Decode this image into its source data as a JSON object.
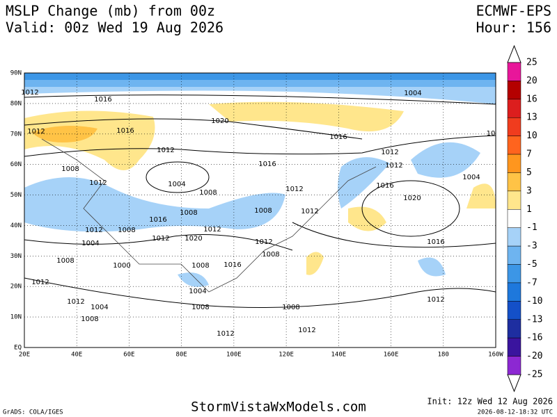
{
  "header": {
    "title": "MSLP Change (mb) from 00z",
    "valid": "Valid: 00z Wed 19 Aug 2026",
    "model": "ECMWF-EPS",
    "hour": "Hour: 156"
  },
  "map": {
    "lat_labels": [
      "90N",
      "80N",
      "70N",
      "60N",
      "50N",
      "40N",
      "30N",
      "20N",
      "10N",
      "EQ"
    ],
    "lon_labels": [
      "20E",
      "40E",
      "60E",
      "80E",
      "100E",
      "120E",
      "140E",
      "160E",
      "180",
      "160W"
    ],
    "contour_labels": [
      "1012",
      "1016",
      "1004",
      "1020",
      "1012",
      "1016",
      "1016",
      "10",
      "1012",
      "1012",
      "1008",
      "1016",
      "1012",
      "1004",
      "1004",
      "1012",
      "1016",
      "1012",
      "1008",
      "1020",
      "1008",
      "1012",
      "1008",
      "1016",
      "1012",
      "1008",
      "1012",
      "1020",
      "1012",
      "1012",
      "1004",
      "1016",
      "1008",
      "1008",
      "1000",
      "1008",
      "1016",
      "1012",
      "1004",
      "1012",
      "1004",
      "1012",
      "1008",
      "1008",
      "1008",
      "1012",
      "1012"
    ]
  },
  "colorbar": {
    "labels": [
      "25",
      "20",
      "16",
      "13",
      "10",
      "7",
      "5",
      "3",
      "1",
      "-1",
      "-3",
      "-5",
      "-7",
      "-10",
      "-13",
      "-16",
      "-20",
      "-25"
    ],
    "colors": [
      "#e8169a",
      "#b40000",
      "#dc1e1e",
      "#f03c1e",
      "#ff641e",
      "#ff961e",
      "#ffc346",
      "#ffe68c",
      "#ffffff",
      "#a6d2f8",
      "#6eb4f0",
      "#3c96e6",
      "#1e78dc",
      "#1450c8",
      "#1e2ea0",
      "#3a149e",
      "#8c28d2"
    ]
  },
  "footer": {
    "grads": "GrADS: COLA/IGES",
    "site": "StormVistaWxModels.com",
    "init": "Init: 12z Wed 12 Aug 2026",
    "stamp": "2026-08-12-18:32 UTC"
  }
}
